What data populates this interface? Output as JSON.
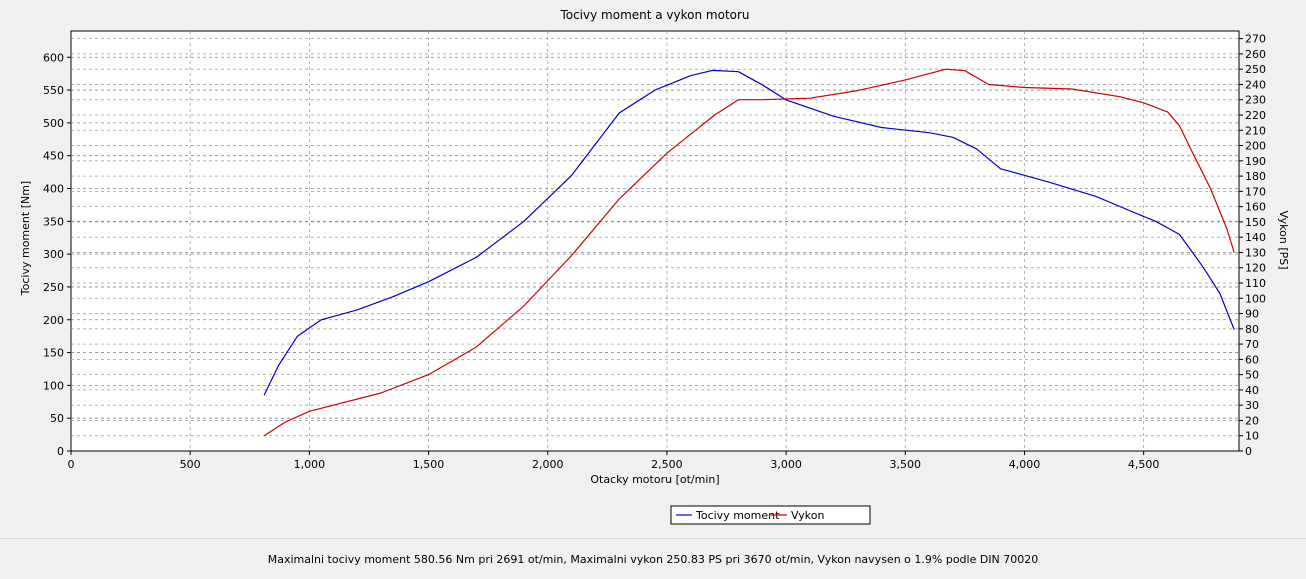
{
  "chart_data": {
    "type": "line",
    "title": "Tocivy moment a vykon motoru",
    "xlabel": "Otacky motoru [ot/min]",
    "ylabel_left": "Tocivy moment [Nm]",
    "ylabel_right": "Vykon [PS]",
    "xlim": [
      0,
      4900
    ],
    "ylim_left": [
      0,
      640
    ],
    "ylim_right": [
      0,
      275
    ],
    "x_ticks": [
      0,
      500,
      1000,
      1500,
      2000,
      2500,
      3000,
      3500,
      4000,
      4500
    ],
    "x_tick_labels": [
      "0",
      "500",
      "1,000",
      "1,500",
      "2,000",
      "2,500",
      "3,000",
      "3,500",
      "4,000",
      "4,500"
    ],
    "y_ticks_left": [
      0,
      50,
      100,
      150,
      200,
      250,
      300,
      350,
      400,
      450,
      500,
      550,
      600
    ],
    "y_ticks_right": [
      0,
      10,
      20,
      30,
      40,
      50,
      60,
      70,
      80,
      90,
      100,
      110,
      120,
      130,
      140,
      150,
      160,
      170,
      180,
      190,
      200,
      210,
      220,
      230,
      240,
      250,
      260,
      270
    ],
    "grid": true,
    "legend_position": "bottom-center",
    "series": [
      {
        "name": "Tocivy moment",
        "axis": "left",
        "color": "#0000cc",
        "points": [
          [
            810,
            85
          ],
          [
            870,
            130
          ],
          [
            950,
            175
          ],
          [
            1050,
            200
          ],
          [
            1200,
            215
          ],
          [
            1350,
            235
          ],
          [
            1500,
            258
          ],
          [
            1700,
            295
          ],
          [
            1900,
            350
          ],
          [
            2100,
            420
          ],
          [
            2300,
            515
          ],
          [
            2450,
            550
          ],
          [
            2600,
            572
          ],
          [
            2691,
            580
          ],
          [
            2800,
            578
          ],
          [
            2900,
            558
          ],
          [
            3000,
            535
          ],
          [
            3200,
            510
          ],
          [
            3400,
            493
          ],
          [
            3600,
            485
          ],
          [
            3700,
            478
          ],
          [
            3800,
            460
          ],
          [
            3900,
            430
          ],
          [
            4100,
            410
          ],
          [
            4300,
            388
          ],
          [
            4450,
            365
          ],
          [
            4550,
            350
          ],
          [
            4650,
            330
          ],
          [
            4750,
            280
          ],
          [
            4820,
            240
          ],
          [
            4880,
            185
          ]
        ]
      },
      {
        "name": "Vykon",
        "axis": "right",
        "color": "#cc0000",
        "points": [
          [
            810,
            10
          ],
          [
            900,
            19
          ],
          [
            1000,
            26
          ],
          [
            1100,
            30
          ],
          [
            1300,
            38
          ],
          [
            1500,
            50
          ],
          [
            1700,
            68
          ],
          [
            1900,
            95
          ],
          [
            2100,
            128
          ],
          [
            2300,
            165
          ],
          [
            2500,
            195
          ],
          [
            2700,
            220
          ],
          [
            2800,
            230
          ],
          [
            2900,
            230
          ],
          [
            3100,
            231
          ],
          [
            3300,
            236
          ],
          [
            3500,
            243
          ],
          [
            3670,
            250
          ],
          [
            3750,
            249
          ],
          [
            3850,
            240
          ],
          [
            4000,
            238
          ],
          [
            4200,
            237
          ],
          [
            4400,
            232
          ],
          [
            4500,
            228
          ],
          [
            4600,
            222
          ],
          [
            4650,
            213
          ],
          [
            4700,
            197
          ],
          [
            4780,
            172
          ],
          [
            4850,
            145
          ],
          [
            4880,
            130
          ]
        ]
      }
    ]
  },
  "status": {
    "summary": "Maximalni tocivy moment 580.56 Nm pri 2691 ot/min,  Maximalni vykon 250.83 PS pri 3670 ot/min,  Vykon navysen o 1.9% podle DIN 70020"
  }
}
